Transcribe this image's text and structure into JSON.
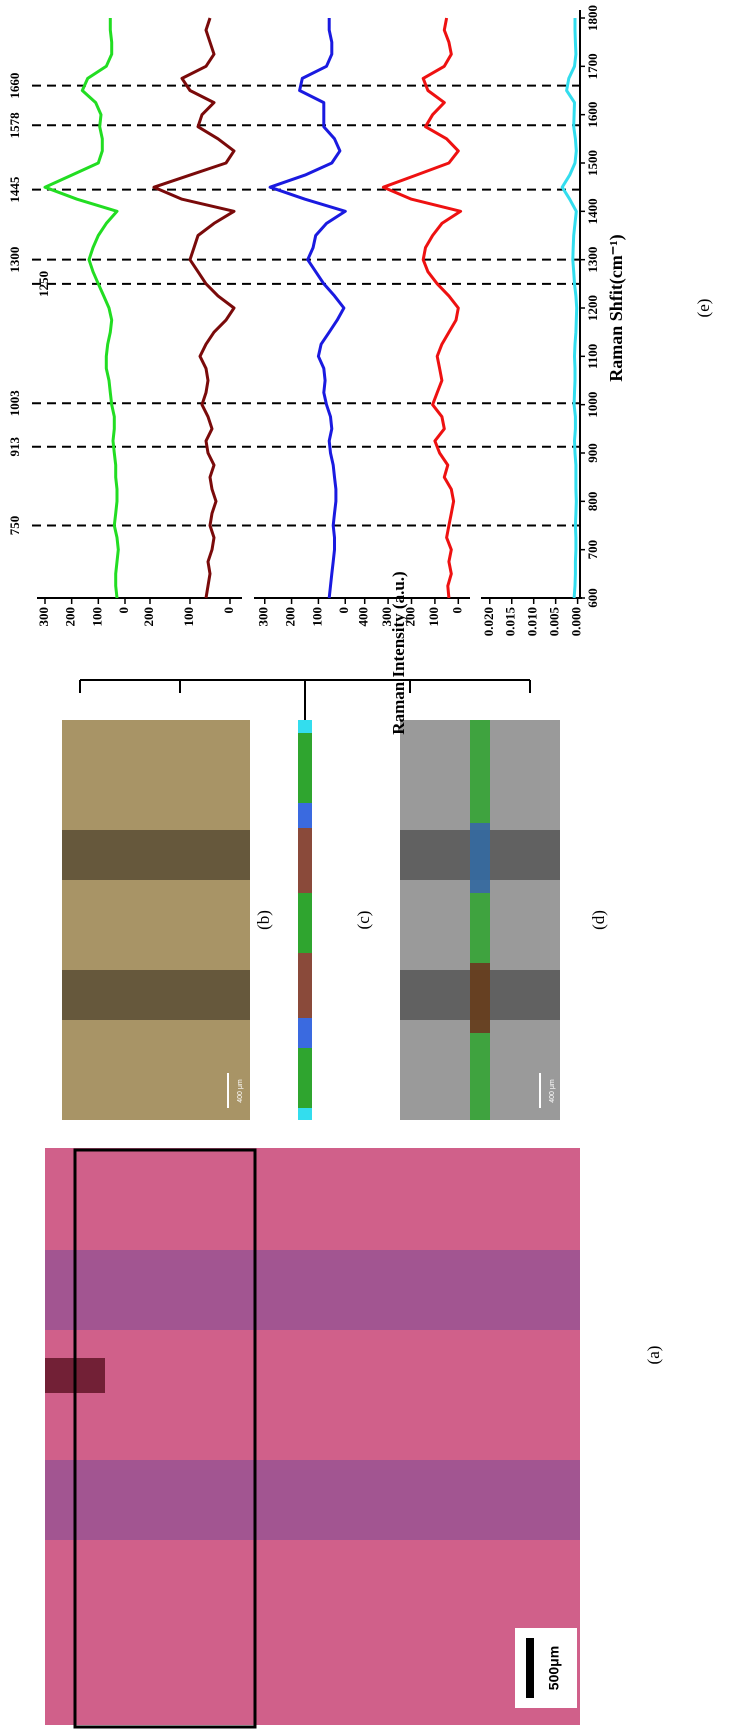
{
  "panels": {
    "a": {
      "label": "(a)",
      "scale_bar": "500μm"
    },
    "b": {
      "label": "(b)",
      "scale_bar": "400 μm"
    },
    "c": {
      "label": "(c)"
    },
    "d": {
      "label": "(d)",
      "scale_bar": "400 μm"
    }
  },
  "chart_data": {
    "type": "line",
    "label": "(e)",
    "xlabel": "Raman Shfit(cm⁻¹)",
    "ylabel": "Raman Intensity (a.u.)",
    "x": [
      600,
      625,
      650,
      675,
      700,
      725,
      750,
      775,
      800,
      825,
      850,
      875,
      900,
      925,
      950,
      975,
      1000,
      1025,
      1050,
      1075,
      1100,
      1125,
      1150,
      1175,
      1200,
      1225,
      1250,
      1275,
      1300,
      1325,
      1350,
      1375,
      1400,
      1425,
      1450,
      1475,
      1500,
      1525,
      1550,
      1575,
      1600,
      1625,
      1650,
      1675,
      1700,
      1725,
      1750,
      1775,
      1800
    ],
    "xlim": [
      600,
      1800
    ],
    "xticks": [
      600,
      700,
      800,
      900,
      1000,
      1100,
      1200,
      1300,
      1400,
      1500,
      1600,
      1700,
      1800
    ],
    "peaks": [
      750,
      913,
      1003,
      1250,
      1300,
      1445,
      1578,
      1660
    ],
    "series": [
      {
        "color": "#22dd22",
        "ylim": [
          -30,
          330
        ],
        "yticks": [
          300,
          200,
          100,
          0
        ],
        "values": [
          30,
          35,
          35,
          30,
          25,
          30,
          40,
          35,
          30,
          30,
          35,
          35,
          40,
          45,
          40,
          40,
          50,
          55,
          60,
          70,
          70,
          65,
          55,
          50,
          60,
          80,
          100,
          120,
          135,
          120,
          100,
          70,
          30,
          180,
          300,
          200,
          100,
          85,
          85,
          95,
          90,
          110,
          160,
          140,
          70,
          50,
          50,
          55,
          55
        ]
      },
      {
        "color": "#7a0a0a",
        "ylim": [
          -30,
          250
        ],
        "yticks": [
          200,
          100,
          0
        ],
        "values": [
          60,
          55,
          50,
          55,
          45,
          40,
          50,
          45,
          35,
          45,
          50,
          40,
          55,
          60,
          45,
          55,
          70,
          60,
          55,
          60,
          75,
          60,
          40,
          10,
          -10,
          30,
          60,
          80,
          100,
          90,
          80,
          40,
          -10,
          120,
          190,
          100,
          10,
          -10,
          30,
          80,
          70,
          40,
          100,
          120,
          60,
          40,
          50,
          60,
          50
        ]
      },
      {
        "color": "#1a1ae0",
        "ylim": [
          -40,
          340
        ],
        "yticks": [
          300,
          200,
          100,
          0
        ],
        "values": [
          60,
          55,
          50,
          45,
          40,
          40,
          45,
          40,
          35,
          35,
          40,
          45,
          55,
          60,
          50,
          55,
          70,
          80,
          75,
          80,
          100,
          90,
          60,
          30,
          5,
          40,
          80,
          110,
          140,
          120,
          110,
          70,
          0,
          150,
          280,
          150,
          50,
          20,
          40,
          80,
          80,
          80,
          170,
          160,
          70,
          50,
          50,
          60,
          60
        ]
      },
      {
        "color": "#ee1111",
        "ylim": [
          -50,
          450
        ],
        "yticks": [
          400,
          300,
          200,
          100,
          0
        ],
        "values": [
          40,
          45,
          30,
          40,
          30,
          50,
          40,
          30,
          20,
          30,
          60,
          45,
          80,
          100,
          60,
          70,
          110,
          90,
          70,
          80,
          90,
          70,
          40,
          10,
          0,
          40,
          90,
          130,
          150,
          140,
          110,
          70,
          -10,
          200,
          320,
          180,
          40,
          0,
          50,
          140,
          110,
          60,
          130,
          150,
          60,
          30,
          40,
          60,
          50
        ]
      },
      {
        "color": "#33ddee",
        "ylim": [
          -0.001,
          0.022
        ],
        "yticks": [
          {
            "value": 0.02,
            "label": "0.020"
          },
          {
            "value": 0.015,
            "label": "0.015"
          },
          {
            "value": 0.01,
            "label": "0.010"
          },
          {
            "value": 0.005,
            "label": "0.005"
          },
          {
            "value": 0,
            "label": "0.000"
          }
        ],
        "values": [
          0.0008,
          0.0006,
          0.0005,
          0.0005,
          0.0004,
          0.0004,
          0.0005,
          0.0004,
          0.0003,
          0.0004,
          0.0004,
          0.0004,
          0.0006,
          0.0007,
          0.0005,
          0.0005,
          0.0008,
          0.0007,
          0.0006,
          0.0006,
          0.0007,
          0.0006,
          0.0004,
          0.0003,
          0.0002,
          0.0004,
          0.0007,
          0.0009,
          0.0011,
          0.001,
          0.0009,
          0.0006,
          0.0003,
          0.0018,
          0.0035,
          0.0018,
          0.0006,
          0.0003,
          0.0005,
          0.0009,
          0.0008,
          0.0007,
          0.0025,
          0.002,
          0.0007,
          0.0004,
          0.0005,
          0.0006,
          0.0006
        ]
      }
    ]
  }
}
